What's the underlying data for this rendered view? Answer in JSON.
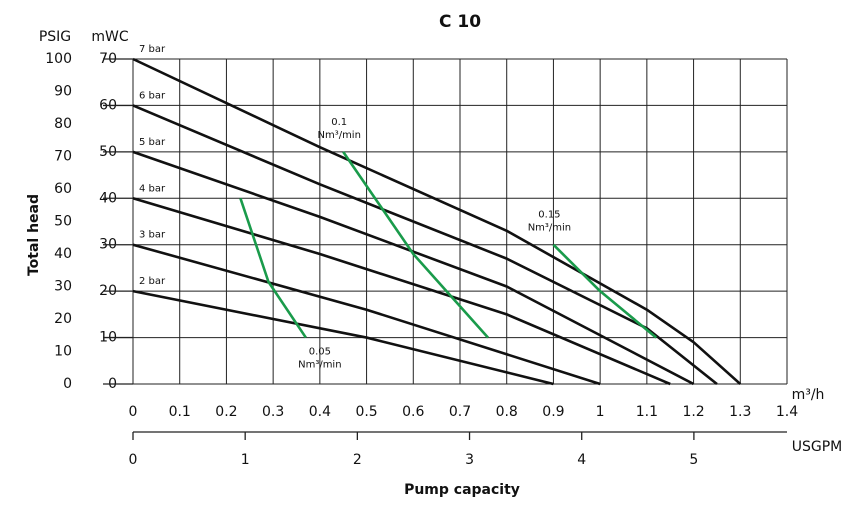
{
  "chart_data": {
    "type": "line",
    "title": "C 10",
    "x_label": "Pump capacity",
    "x_unit": "m³/h",
    "xlim": [
      0,
      1.4
    ],
    "xticks": [
      0,
      0.1,
      0.2,
      0.3,
      0.4,
      0.5,
      0.6,
      0.7,
      0.8,
      0.9,
      1,
      1.1,
      1.2,
      1.3,
      1.4
    ],
    "x2_unit": "USGPM",
    "x2lim": [
      0,
      5.83
    ],
    "x2ticks": [
      0,
      1,
      2,
      3,
      4,
      5
    ],
    "y_label": "Total head",
    "y_unit": "mWC",
    "ylim": [
      0,
      70
    ],
    "yticks": [
      0,
      10,
      20,
      30,
      40,
      50,
      60,
      70
    ],
    "y2_unit": "PSIG",
    "y2lim": [
      0,
      100
    ],
    "y2ticks": [
      0,
      10,
      20,
      30,
      40,
      50,
      60,
      70,
      80,
      90,
      100
    ],
    "grid": true,
    "series": [
      {
        "name": "7 bar",
        "color": "#111111",
        "x": [
          0,
          0.4,
          0.8,
          1.1,
          1.2,
          1.3
        ],
        "values": [
          70,
          51,
          33,
          16,
          9,
          0
        ]
      },
      {
        "name": "6 bar",
        "color": "#111111",
        "x": [
          0,
          0.4,
          0.8,
          1.1,
          1.25
        ],
        "values": [
          60,
          43,
          27,
          12,
          0
        ]
      },
      {
        "name": "5 bar",
        "color": "#111111",
        "x": [
          0,
          0.4,
          0.8,
          1.2
        ],
        "values": [
          50,
          36,
          21,
          0
        ]
      },
      {
        "name": "4 bar",
        "color": "#111111",
        "x": [
          0,
          0.4,
          0.8,
          1.15
        ],
        "values": [
          40,
          28,
          15,
          0
        ]
      },
      {
        "name": "3 bar",
        "color": "#111111",
        "x": [
          0,
          0.5,
          1.0
        ],
        "values": [
          30,
          16,
          0
        ]
      },
      {
        "name": "2 bar",
        "color": "#111111",
        "x": [
          0,
          0.5,
          0.9
        ],
        "values": [
          20,
          10,
          0
        ]
      },
      {
        "name": "0.05",
        "unit": "Nm³/min",
        "color": "#1a9b4b",
        "x": [
          0.23,
          0.29,
          0.37
        ],
        "values": [
          40,
          22,
          10
        ]
      },
      {
        "name": "0.1",
        "unit": "Nm³/min",
        "color": "#1a9b4b",
        "x": [
          0.45,
          0.6,
          0.76
        ],
        "values": [
          50,
          28,
          10
        ]
      },
      {
        "name": "0.15",
        "unit": "Nm³/min",
        "color": "#1a9b4b",
        "x": [
          0.9,
          1.0,
          1.12
        ],
        "values": [
          30,
          20,
          10
        ]
      }
    ]
  }
}
